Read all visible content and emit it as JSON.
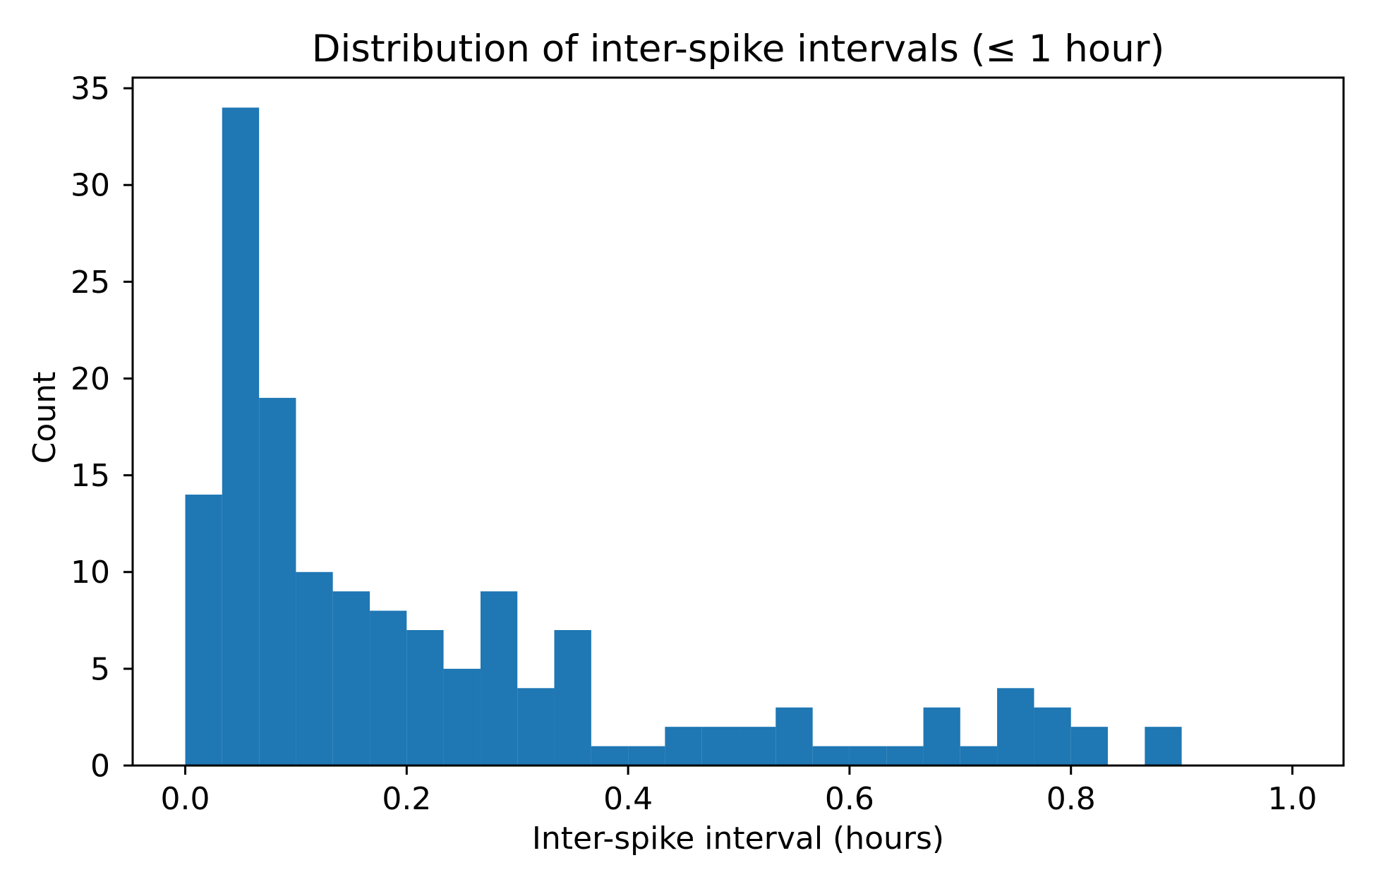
{
  "figure": {
    "background_color": "#ffffff",
    "text_color": "#000000",
    "spine_color": "#000000"
  },
  "chart_data": {
    "type": "bar",
    "subtype": "histogram",
    "title": "Distribution of inter-spike intervals (≤ 1 hour)",
    "xlabel": "Inter-spike interval (hours)",
    "ylabel": "Count",
    "bar_color": "#1f77b4",
    "grid": false,
    "legend": false,
    "bin_edges": [
      0.0,
      0.0333,
      0.0667,
      0.1,
      0.1333,
      0.1667,
      0.2,
      0.2333,
      0.2667,
      0.3,
      0.3333,
      0.3667,
      0.4,
      0.4333,
      0.4667,
      0.5,
      0.5333,
      0.5667,
      0.6,
      0.6333,
      0.6667,
      0.7,
      0.7333,
      0.7667,
      0.8,
      0.8333,
      0.8667,
      0.9,
      0.9333,
      0.9667,
      1.0
    ],
    "counts": [
      14,
      34,
      19,
      10,
      9,
      8,
      7,
      5,
      9,
      4,
      7,
      1,
      1,
      2,
      2,
      2,
      3,
      1,
      1,
      1,
      3,
      1,
      4,
      3,
      2,
      0,
      2,
      0,
      0,
      0
    ],
    "xticks": {
      "values": [
        0.0,
        0.2,
        0.4,
        0.6,
        0.8,
        1.0
      ],
      "labels": [
        "0.0",
        "0.2",
        "0.4",
        "0.6",
        "0.8",
        "1.0"
      ]
    },
    "yticks": {
      "values": [
        0,
        5,
        10,
        15,
        20,
        25,
        30,
        35
      ],
      "labels": [
        "0",
        "5",
        "10",
        "15",
        "20",
        "25",
        "30",
        "35"
      ]
    },
    "xlim": [
      -0.0475,
      1.0462
    ],
    "ylim": [
      0,
      35.55
    ]
  }
}
